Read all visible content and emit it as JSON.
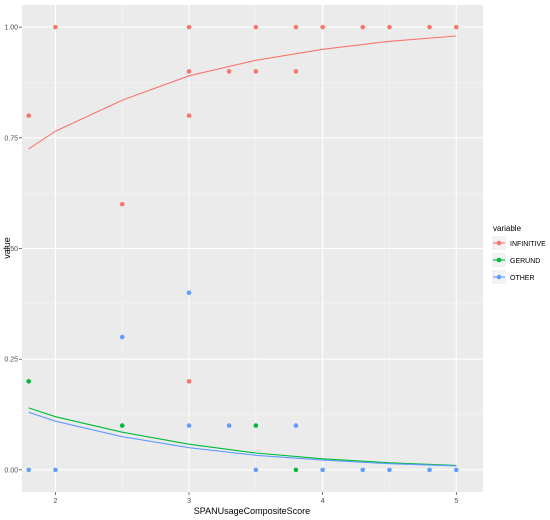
{
  "chart_data": {
    "type": "scatter",
    "xlabel": "SPANUsageCompositeScore",
    "ylabel": "value",
    "xlim": [
      1.75,
      5.2
    ],
    "ylim": [
      -0.05,
      1.05
    ],
    "x_ticks": [
      2,
      3,
      4,
      5
    ],
    "x_tick_labels": [
      "2",
      "3",
      "4",
      "5"
    ],
    "y_ticks": [
      0,
      0.25,
      0.5,
      0.75,
      1
    ],
    "y_tick_labels": [
      "0.00",
      "0.25",
      "0.50",
      "0.75",
      "1.00"
    ],
    "grid": true,
    "legend": {
      "title": "variable",
      "placement": "right"
    },
    "series": [
      {
        "name": "INFINITIVE",
        "color": "#F8766D",
        "points": [
          [
            1.8,
            0.8
          ],
          [
            2,
            1
          ],
          [
            2.5,
            0.6
          ],
          [
            3,
            1
          ],
          [
            3,
            0.9
          ],
          [
            3,
            0.8
          ],
          [
            3,
            0.2
          ],
          [
            3.3,
            0.9
          ],
          [
            3.5,
            1
          ],
          [
            3.5,
            0.9
          ],
          [
            3.8,
            1
          ],
          [
            3.8,
            0.9
          ],
          [
            4,
            1
          ],
          [
            4.3,
            1
          ],
          [
            4.5,
            1
          ],
          [
            4.8,
            1
          ],
          [
            5,
            1
          ]
        ],
        "fit": [
          [
            1.8,
            0.725
          ],
          [
            2,
            0.765
          ],
          [
            2.5,
            0.835
          ],
          [
            3,
            0.89
          ],
          [
            3.5,
            0.925
          ],
          [
            4,
            0.95
          ],
          [
            4.5,
            0.968
          ],
          [
            5,
            0.98
          ]
        ]
      },
      {
        "name": "GERUND",
        "color": "#00BA38",
        "points": [
          [
            1.8,
            0.2
          ],
          [
            2.5,
            0.1
          ],
          [
            3.5,
            0.1
          ],
          [
            3.8,
            0
          ]
        ],
        "fit": [
          [
            1.8,
            0.14
          ],
          [
            2,
            0.12
          ],
          [
            2.5,
            0.085
          ],
          [
            3,
            0.058
          ],
          [
            3.5,
            0.038
          ],
          [
            4,
            0.025
          ],
          [
            4.5,
            0.016
          ],
          [
            5,
            0.01
          ]
        ]
      },
      {
        "name": "OTHER",
        "color": "#619CFF",
        "points": [
          [
            1.8,
            0
          ],
          [
            2,
            0
          ],
          [
            2.5,
            0.3
          ],
          [
            3,
            0.4
          ],
          [
            3,
            0.1
          ],
          [
            3.3,
            0.1
          ],
          [
            3.5,
            0
          ],
          [
            3.8,
            0.1
          ],
          [
            4,
            0
          ],
          [
            4.3,
            0
          ],
          [
            4.5,
            0
          ],
          [
            4.8,
            0
          ],
          [
            5,
            0
          ]
        ],
        "fit": [
          [
            1.8,
            0.13
          ],
          [
            2,
            0.11
          ],
          [
            2.5,
            0.075
          ],
          [
            3,
            0.05
          ],
          [
            3.5,
            0.033
          ],
          [
            4,
            0.022
          ],
          [
            4.5,
            0.014
          ],
          [
            5,
            0.009
          ]
        ]
      }
    ]
  }
}
